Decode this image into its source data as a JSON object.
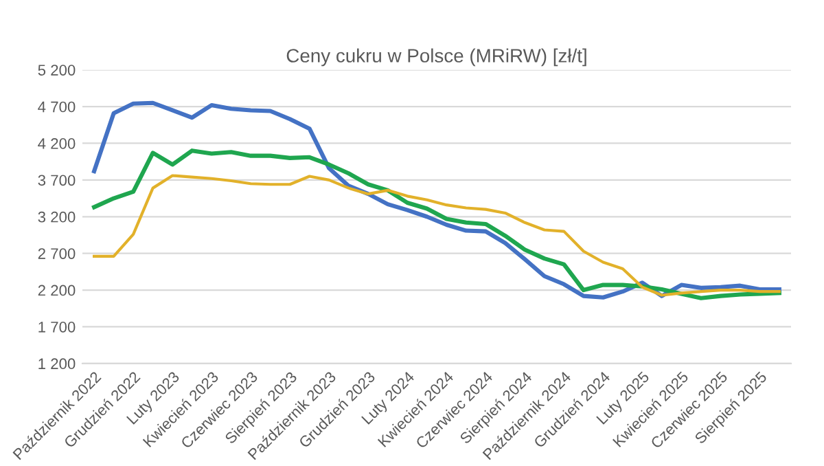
{
  "chart_data": {
    "type": "line",
    "title": "Ceny cukru w Polsce (MRiRW) [zł/t]",
    "categories": [
      "Październik 2022",
      null,
      "Grudzień 2022",
      null,
      "Luty 2023",
      null,
      "Kwiecień 2023",
      null,
      "Czerwiec 2023",
      null,
      "Sierpień 2023",
      null,
      "Październik 2023",
      null,
      "Grudzień 2023",
      null,
      "Luty 2024",
      null,
      "Kwiecień 2024",
      null,
      "Czerwiec 2024",
      null,
      "Sierpień 2024",
      null,
      "Październik 2024",
      null,
      "Grudzień 2024",
      null,
      "Luty 2025",
      null,
      "Kwiecień 2025",
      null,
      "Czerwiec 2025",
      null,
      "Sierpień 2025",
      null
    ],
    "series": [
      {
        "color": "#4472c4",
        "values": [
          3820,
          4610,
          4740,
          4750,
          4650,
          4550,
          4720,
          4670,
          4650,
          4640,
          4530,
          4400,
          3860,
          3620,
          3510,
          3370,
          3290,
          3200,
          3090,
          3010,
          3000,
          2840,
          2620,
          2390,
          2280,
          2120,
          2100,
          2180,
          2300,
          2120,
          2270,
          2230,
          2240,
          2260,
          2210,
          2210
        ]
      },
      {
        "color": "#1fa64f",
        "values": [
          3330,
          3450,
          3540,
          4070,
          3910,
          4100,
          4060,
          4080,
          4030,
          4030,
          4000,
          4010,
          3910,
          3790,
          3640,
          3560,
          3390,
          3310,
          3170,
          3120,
          3100,
          2940,
          2750,
          2630,
          2550,
          2200,
          2270,
          2270,
          2250,
          2210,
          2150,
          2090,
          2120,
          2140,
          2150,
          2160
        ]
      },
      {
        "color": "#e2b12a",
        "values": [
          2660,
          2660,
          2960,
          3590,
          3760,
          3740,
          3720,
          3690,
          3650,
          3640,
          3640,
          3750,
          3700,
          3590,
          3510,
          3560,
          3480,
          3430,
          3360,
          3320,
          3300,
          3250,
          3120,
          3020,
          3000,
          2730,
          2580,
          2490,
          2240,
          2130,
          2160,
          2180,
          2200,
          2200,
          2180,
          2180
        ]
      }
    ],
    "ylim": [
      1200,
      5200
    ],
    "yticks": [
      {
        "value": 1200,
        "label": "1 200"
      },
      {
        "value": 1700,
        "label": "1 700"
      },
      {
        "value": 2200,
        "label": "2 200"
      },
      {
        "value": 2700,
        "label": "2 700"
      },
      {
        "value": 3200,
        "label": "3 200"
      },
      {
        "value": 3700,
        "label": "3 700"
      },
      {
        "value": 4200,
        "label": "4 200"
      },
      {
        "value": 4700,
        "label": "4 700"
      },
      {
        "value": 5200,
        "label": "5 200"
      }
    ],
    "grid": "y",
    "marker": "none",
    "line_style": "solid"
  }
}
